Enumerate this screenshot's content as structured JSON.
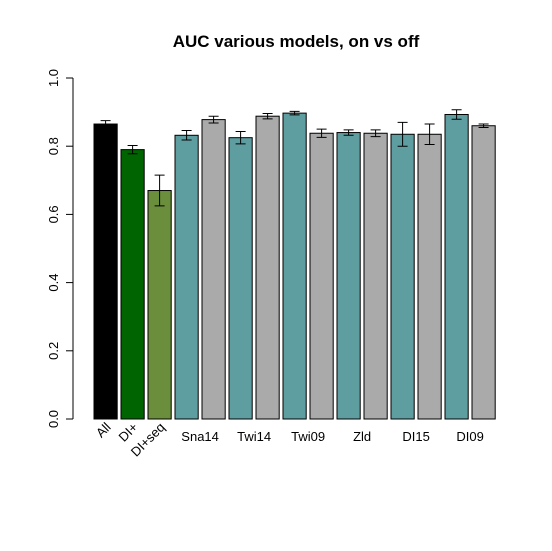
{
  "chart_data": {
    "type": "bar",
    "title": "AUC various models, on vs off",
    "xlabel": "",
    "ylabel": "",
    "ylim": [
      0,
      1
    ],
    "yticks": [
      "0.0",
      "0.2",
      "0.4",
      "0.6",
      "0.8",
      "1.0"
    ],
    "grid": false,
    "legend": "none",
    "bars": [
      {
        "value": 0.865,
        "err": 0.01,
        "color": "#000000"
      },
      {
        "value": 0.79,
        "err": 0.012,
        "color": "#006400"
      },
      {
        "value": 0.67,
        "err": 0.045,
        "color": "#6b8e3d"
      },
      {
        "value": 0.832,
        "err": 0.014,
        "color": "#5f9ea0"
      },
      {
        "value": 0.878,
        "err": 0.01,
        "color": "#aaaaaa"
      },
      {
        "value": 0.825,
        "err": 0.018,
        "color": "#5f9ea0"
      },
      {
        "value": 0.888,
        "err": 0.008,
        "color": "#aaaaaa"
      },
      {
        "value": 0.897,
        "err": 0.005,
        "color": "#5f9ea0"
      },
      {
        "value": 0.838,
        "err": 0.012,
        "color": "#aaaaaa"
      },
      {
        "value": 0.84,
        "err": 0.008,
        "color": "#5f9ea0"
      },
      {
        "value": 0.838,
        "err": 0.01,
        "color": "#aaaaaa"
      },
      {
        "value": 0.835,
        "err": 0.035,
        "color": "#5f9ea0"
      },
      {
        "value": 0.835,
        "err": 0.03,
        "color": "#aaaaaa"
      },
      {
        "value": 0.893,
        "err": 0.014,
        "color": "#5f9ea0"
      },
      {
        "value": 0.86,
        "err": 0.005,
        "color": "#aaaaaa"
      }
    ],
    "rotated_labels": [
      {
        "label": "All",
        "bar": 0
      },
      {
        "label": "DI+",
        "bar": 1
      },
      {
        "label": "DI+seq",
        "bar": 2
      }
    ],
    "group_labels": [
      {
        "label": "Sna14",
        "bars": [
          3,
          4
        ]
      },
      {
        "label": "Twi14",
        "bars": [
          5,
          6
        ]
      },
      {
        "label": "Twi09",
        "bars": [
          7,
          8
        ]
      },
      {
        "label": "Zld",
        "bars": [
          9,
          10
        ]
      },
      {
        "label": "DI15",
        "bars": [
          11,
          12
        ]
      },
      {
        "label": "DI09",
        "bars": [
          13,
          14
        ]
      }
    ]
  }
}
